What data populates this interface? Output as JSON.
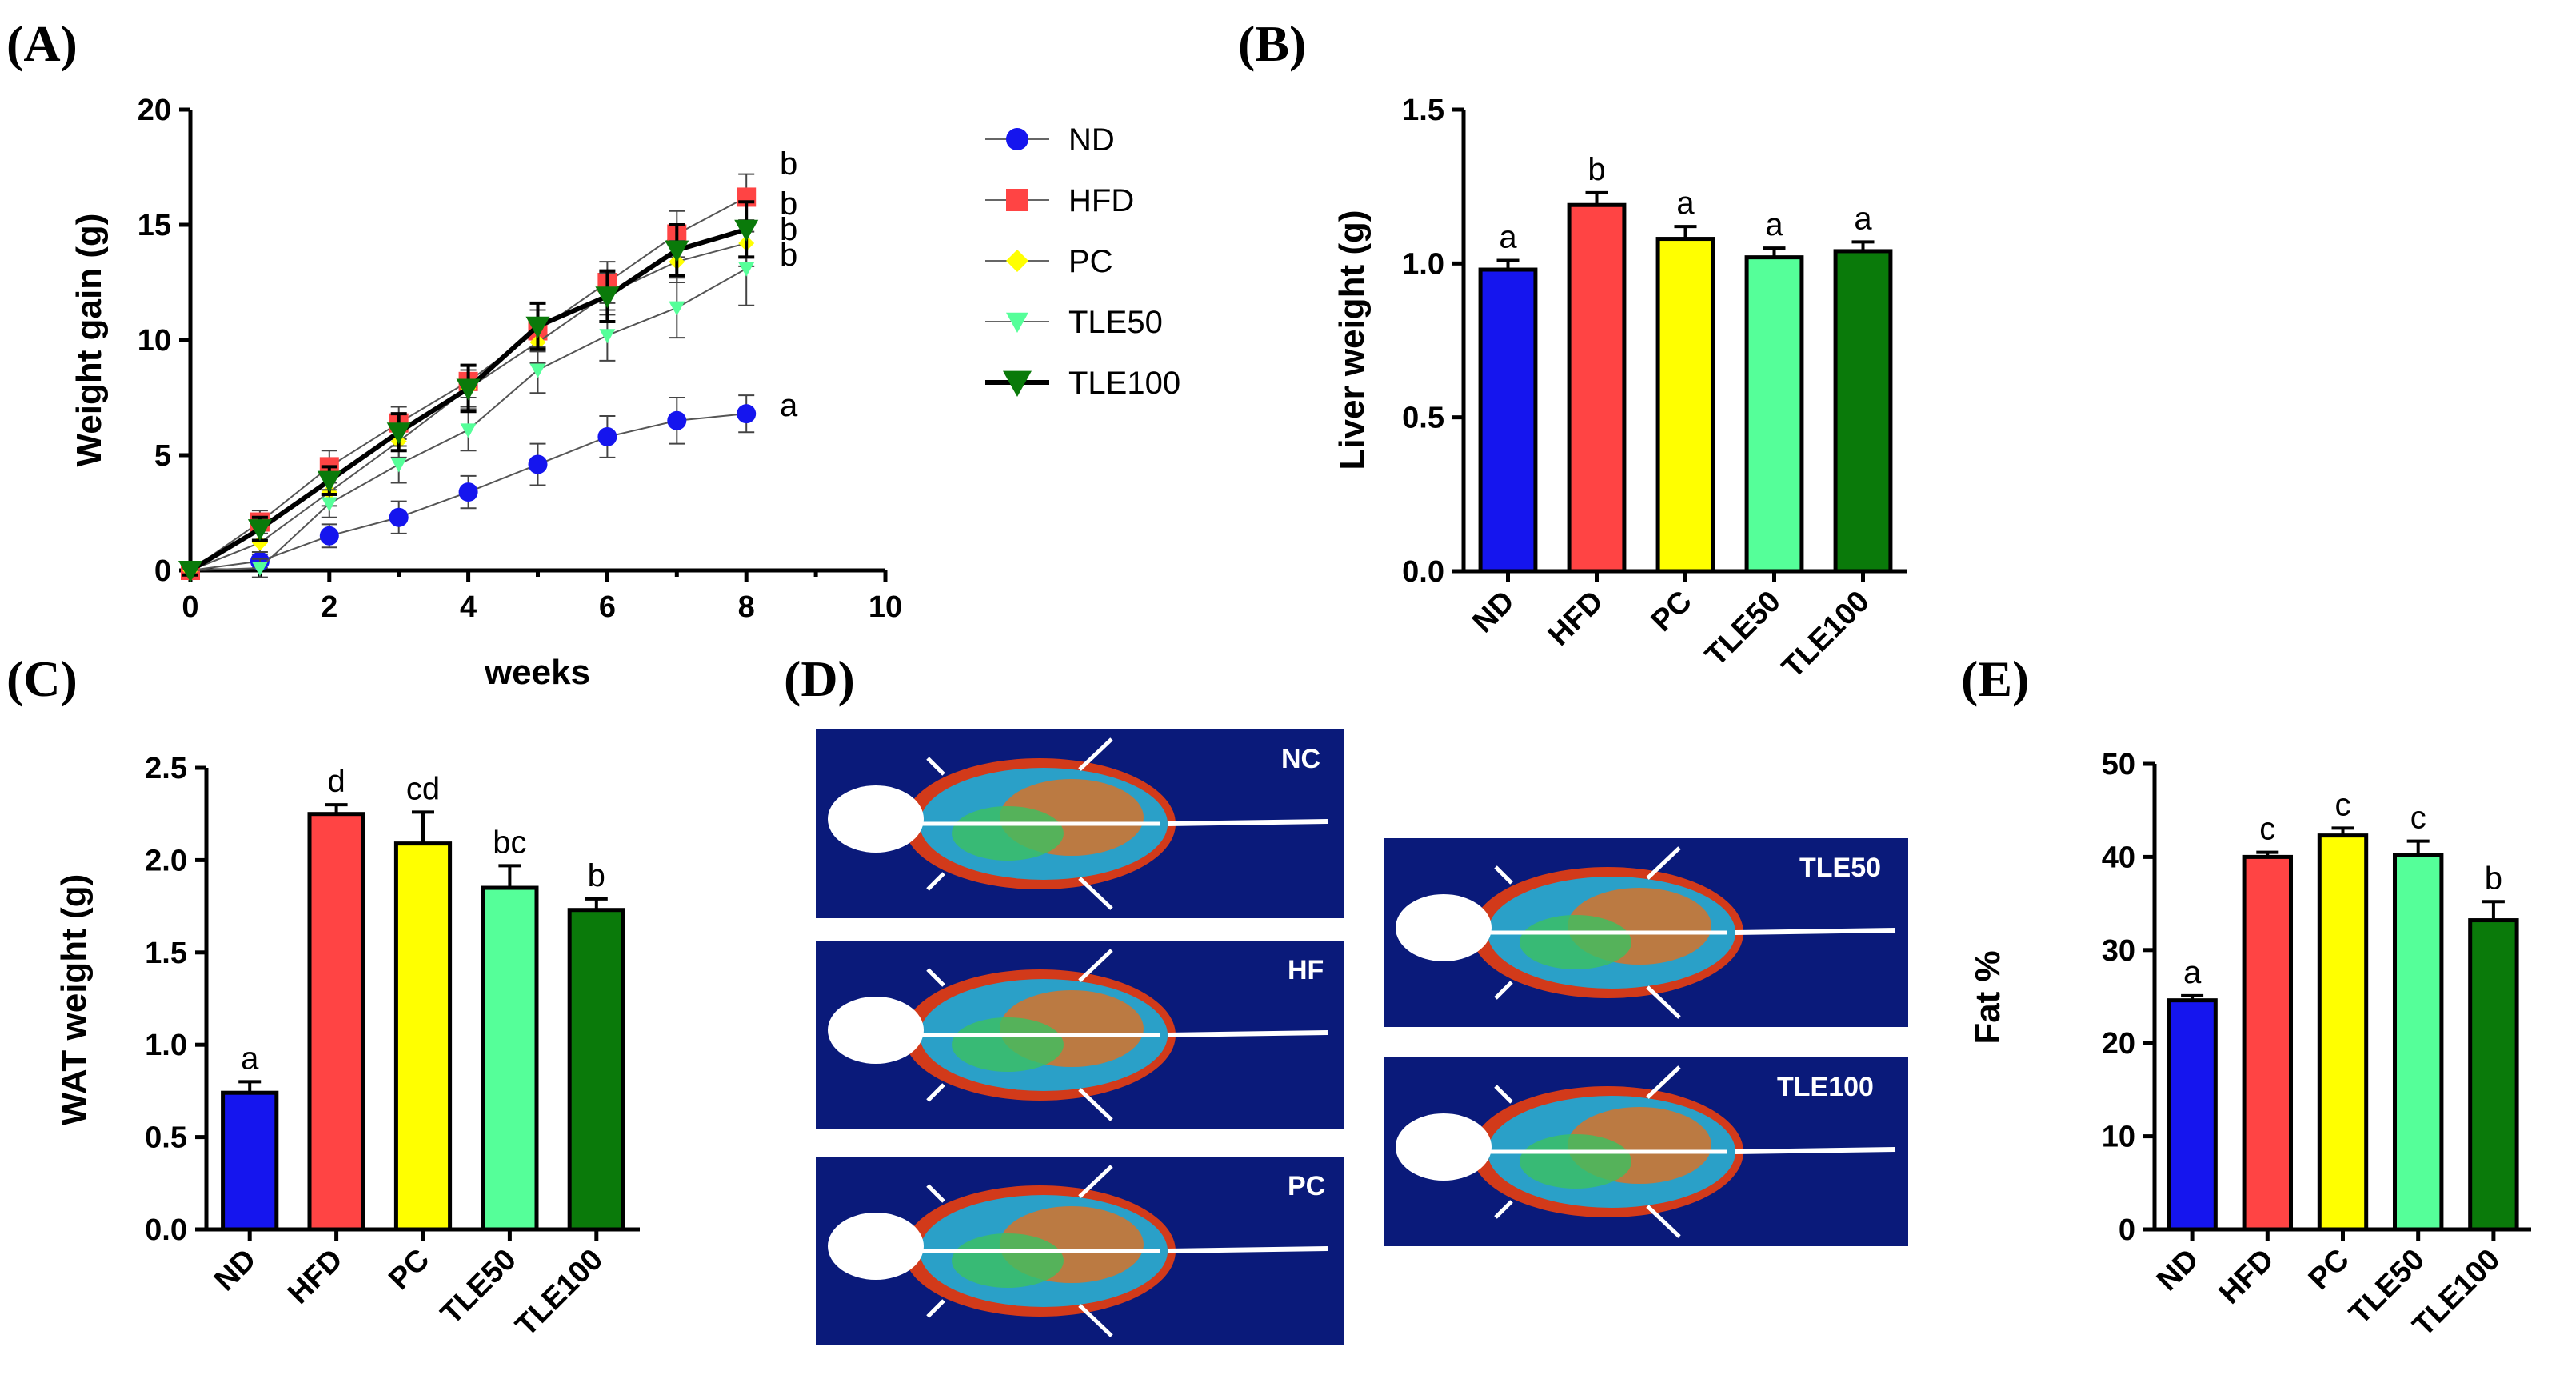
{
  "colors": {
    "ND": "#1515ee",
    "HFD": "#ff4444",
    "PC": "#ffff00",
    "TLE50": "#55ff99",
    "TLE100": "#0a7a0a",
    "scan_bg": "#0a1a7a"
  },
  "panels": {
    "A": "(A)",
    "B": "(B)",
    "C": "(C)",
    "D": "(D)",
    "E": "(E)"
  },
  "scans": {
    "NC": "NC",
    "HF": "HF",
    "PC": "PC",
    "TLE50": "TLE50",
    "TLE100": "TLE100"
  },
  "chart_data": [
    {
      "id": "A",
      "type": "line",
      "xlabel": "weeks",
      "ylabel": "Weight gain (g)",
      "xlim": [
        0,
        10
      ],
      "ylim": [
        0,
        20
      ],
      "xticks": [
        0,
        2,
        4,
        6,
        8,
        10
      ],
      "yticks": [
        0,
        5,
        10,
        15,
        20
      ],
      "x": [
        0,
        1,
        2,
        3,
        4,
        5,
        6,
        7,
        8
      ],
      "series": [
        {
          "name": "ND",
          "marker": "circle",
          "values": [
            0,
            0.4,
            1.5,
            2.3,
            3.4,
            4.6,
            5.8,
            6.5,
            6.8
          ],
          "err": [
            0.2,
            0.3,
            0.5,
            0.7,
            0.7,
            0.9,
            0.9,
            1.0,
            0.8
          ],
          "label": "a"
        },
        {
          "name": "HFD",
          "marker": "square",
          "values": [
            0,
            2.1,
            4.5,
            6.4,
            8.2,
            10.4,
            12.5,
            14.6,
            16.2
          ],
          "err": [
            0.2,
            0.5,
            0.7,
            0.7,
            0.7,
            0.9,
            0.9,
            1.0,
            1.0
          ],
          "label": "b"
        },
        {
          "name": "PC",
          "marker": "diamond",
          "values": [
            0,
            1.2,
            3.4,
            5.6,
            7.9,
            9.9,
            12.0,
            13.4,
            14.2
          ],
          "err": [
            0.2,
            0.4,
            0.6,
            0.7,
            0.8,
            0.9,
            0.9,
            0.9,
            1.0
          ],
          "label": "b"
        },
        {
          "name": "TLE50",
          "marker": "triangle-down",
          "values": [
            0,
            0.1,
            2.9,
            4.6,
            6.1,
            8.7,
            10.2,
            11.4,
            13.1
          ],
          "err": [
            0.2,
            0.4,
            0.6,
            0.8,
            0.9,
            1.0,
            1.1,
            1.3,
            1.6
          ],
          "label": "b"
        },
        {
          "name": "TLE100",
          "marker": "triangle-down",
          "values": [
            0,
            1.8,
            3.9,
            6.0,
            7.9,
            10.6,
            11.9,
            13.9,
            14.8
          ],
          "err": [
            0.2,
            0.5,
            0.6,
            0.8,
            1.0,
            1.0,
            1.1,
            1.1,
            1.2
          ],
          "label": "b"
        }
      ],
      "legend": [
        "ND",
        "HFD",
        "PC",
        "TLE50",
        "TLE100"
      ]
    },
    {
      "id": "B",
      "type": "bar",
      "ylabel": "Liver weight (g)",
      "ylim": [
        0,
        1.5
      ],
      "yticks": [
        "0.0",
        "0.5",
        "1.0",
        "1.5"
      ],
      "categories": [
        "ND",
        "HFD",
        "PC",
        "TLE50",
        "TLE100"
      ],
      "values": [
        0.98,
        1.19,
        1.08,
        1.02,
        1.04
      ],
      "err": [
        0.03,
        0.04,
        0.04,
        0.03,
        0.03
      ],
      "letters": [
        "a",
        "b",
        "a",
        "a",
        "a"
      ]
    },
    {
      "id": "C",
      "type": "bar",
      "ylabel": "WAT weight (g)",
      "ylim": [
        0,
        2.5
      ],
      "yticks": [
        "0.0",
        "0.5",
        "1.0",
        "1.5",
        "2.0",
        "2.5"
      ],
      "categories": [
        "ND",
        "HFD",
        "PC",
        "TLE50",
        "TLE100"
      ],
      "values": [
        0.74,
        2.25,
        2.09,
        1.85,
        1.73
      ],
      "err": [
        0.06,
        0.05,
        0.17,
        0.12,
        0.06
      ],
      "letters": [
        "a",
        "d",
        "cd",
        "bc",
        "b"
      ]
    },
    {
      "id": "E",
      "type": "bar",
      "ylabel": "Fat %",
      "ylim": [
        0,
        50
      ],
      "yticks": [
        "0",
        "10",
        "20",
        "30",
        "40",
        "50"
      ],
      "categories": [
        "ND",
        "HFD",
        "PC",
        "TLE50",
        "TLE100"
      ],
      "values": [
        24.6,
        40.0,
        42.3,
        40.2,
        33.2
      ],
      "err": [
        0.5,
        0.5,
        0.8,
        1.5,
        2.0
      ],
      "letters": [
        "a",
        "c",
        "c",
        "c",
        "b"
      ]
    }
  ]
}
